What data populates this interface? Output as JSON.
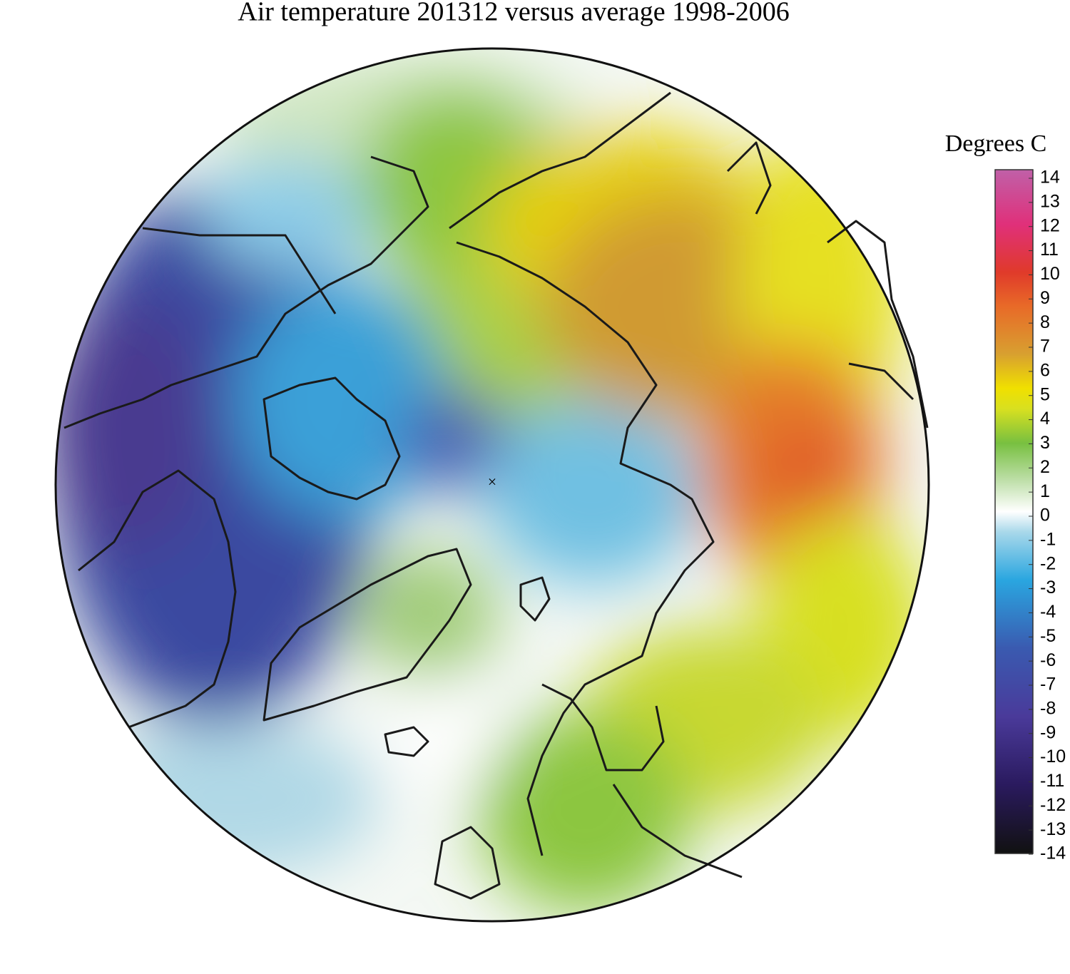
{
  "title": "Air temperature 201312 versus average 1998-2006",
  "colorbar": {
    "label": "Degrees C",
    "lim": [
      -14,
      14
    ],
    "ticks": [
      14,
      13,
      12,
      11,
      10,
      9,
      8,
      7,
      6,
      5,
      4,
      3,
      2,
      1,
      0,
      -1,
      -2,
      -3,
      -4,
      -5,
      -6,
      -7,
      -8,
      -9,
      -10,
      -11,
      -12,
      -13,
      -14
    ]
  }
}
